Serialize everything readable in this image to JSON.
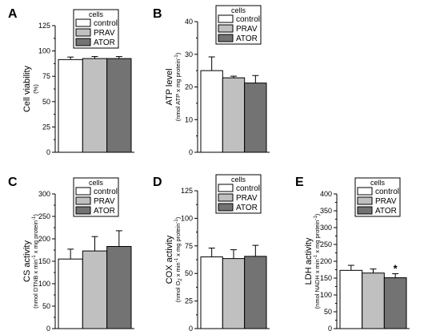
{
  "legend_title": "cells",
  "colors": {
    "control": "#ffffff",
    "PRAV": "#c0c0c0",
    "ATOR": "#737373"
  },
  "chart_data": [
    {
      "panel": "A",
      "type": "bar",
      "categories": [
        "control",
        "PRAV",
        "ATOR"
      ],
      "values": [
        91.5,
        92.5,
        92.5
      ],
      "errors": [
        2.5,
        2,
        2
      ],
      "ylabel": "Cell viability",
      "yunit": "(%)",
      "ylim": [
        0,
        125
      ],
      "yticks": [
        0,
        25,
        50,
        75,
        100,
        125
      ],
      "legend": {
        "title": "cells",
        "entries": [
          "control",
          "PRAV",
          "ATOR"
        ],
        "placement": "top"
      },
      "annotations": []
    },
    {
      "panel": "B",
      "type": "bar",
      "categories": [
        "control",
        "PRAV",
        "ATOR"
      ],
      "values": [
        25,
        22.8,
        21.2
      ],
      "errors": [
        4.2,
        0.5,
        2.3
      ],
      "ylabel": "ATP level",
      "yunit": "(nmol ATP x mg protein",
      "yunit_sup": "-1",
      "yunit_end": ")",
      "ylim": [
        0,
        40
      ],
      "yticks": [
        0,
        10,
        20,
        30,
        40
      ],
      "legend": {
        "title": "cells",
        "entries": [
          "control",
          "PRAV",
          "ATOR"
        ],
        "placement": "top"
      },
      "annotations": []
    },
    {
      "panel": "C",
      "type": "bar",
      "categories": [
        "control",
        "PRAV",
        "ATOR"
      ],
      "values": [
        155,
        173,
        183
      ],
      "errors": [
        22,
        32,
        35
      ],
      "ylabel": "CS activity",
      "yunit": "(nmol DTNB x min",
      "yunit_sup": "-1",
      "yunit_mid": " x mg protein",
      "yunit_sup2": "-1",
      "yunit_end": ")",
      "ylim": [
        0,
        300
      ],
      "yticks": [
        0,
        50,
        100,
        150,
        200,
        250,
        300
      ],
      "legend": {
        "title": "cells",
        "entries": [
          "control",
          "PRAV",
          "ATOR"
        ],
        "placement": "top"
      },
      "annotations": []
    },
    {
      "panel": "D",
      "type": "bar",
      "categories": [
        "control",
        "PRAV",
        "ATOR"
      ],
      "values": [
        65,
        63.5,
        65.5
      ],
      "errors": [
        8,
        8,
        10
      ],
      "ylabel": "COX activity",
      "yunit": "(nmol O",
      "yunit_sub": "2",
      "yunit_mid": " x min",
      "yunit_sup": "-1",
      "yunit_mid2": " x mg protein",
      "yunit_sup2": "-1",
      "yunit_end": ")",
      "ylim": [
        0,
        125
      ],
      "yticks": [
        0,
        25,
        50,
        75,
        100,
        125
      ],
      "legend": {
        "title": "cells",
        "entries": [
          "control",
          "PRAV",
          "ATOR"
        ],
        "placement": "top"
      },
      "annotations": []
    },
    {
      "panel": "E",
      "type": "bar",
      "categories": [
        "control",
        "PRAV",
        "ATOR"
      ],
      "values": [
        173,
        165,
        151
      ],
      "errors": [
        15,
        12,
        12
      ],
      "ylabel": "LDH activity",
      "yunit": "(nmol NADH x min",
      "yunit_sup": "-1",
      "yunit_mid": " x mg protein",
      "yunit_sup2": "-1",
      "yunit_end": ")",
      "ylim": [
        0,
        400
      ],
      "yticks": [
        0,
        50,
        100,
        150,
        200,
        250,
        300,
        350,
        400
      ],
      "legend": {
        "title": "cells",
        "entries": [
          "control",
          "PRAV",
          "ATOR"
        ],
        "placement": "top"
      },
      "annotations": [
        {
          "category": "ATOR",
          "text": "*"
        }
      ]
    }
  ]
}
